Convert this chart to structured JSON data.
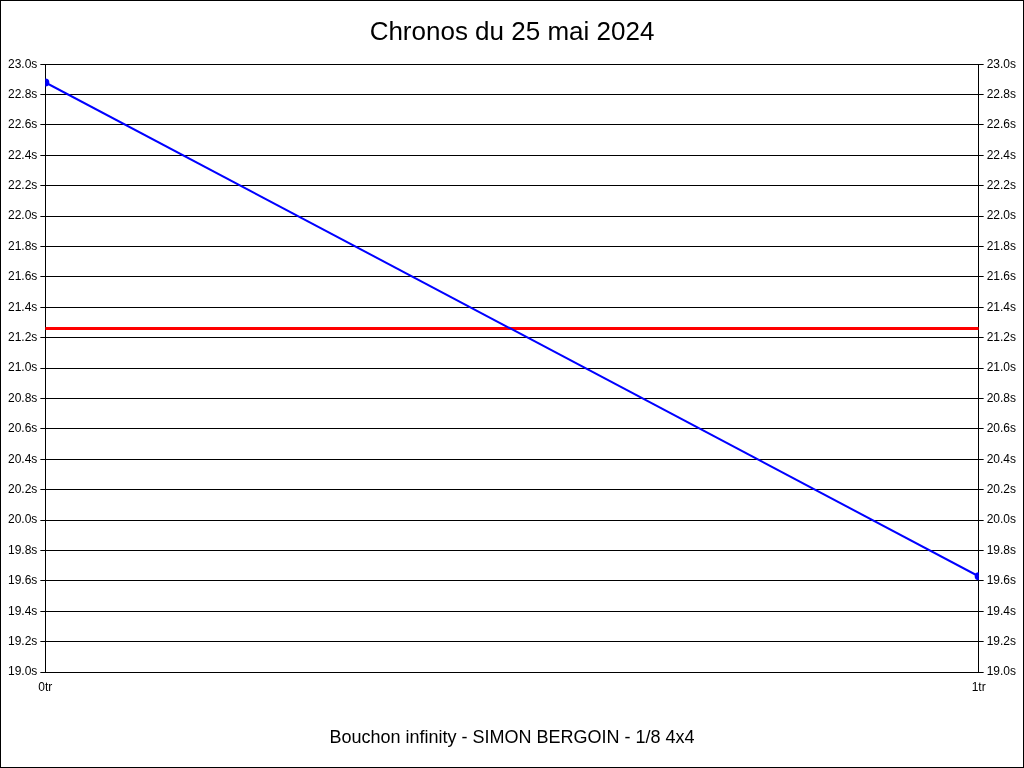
{
  "chart_data": {
    "type": "line",
    "title": "Chronos du 25 mai 2024",
    "xlabel": "Bouchon infinity - SIMON BERGOIN - 1/8 4x4",
    "x": [
      0,
      1
    ],
    "series": [
      {
        "color": "#0000ff",
        "values": [
          22.88,
          19.63
        ]
      }
    ],
    "xlim": [
      0,
      1
    ],
    "xticks": [
      {
        "value": 0,
        "label": "0tr"
      },
      {
        "value": 1,
        "label": "1tr"
      }
    ],
    "ylim": [
      19.0,
      23.0
    ],
    "yticks": [
      {
        "value": 19.0,
        "label": "19.0s"
      },
      {
        "value": 19.2,
        "label": "19.2s"
      },
      {
        "value": 19.4,
        "label": "19.4s"
      },
      {
        "value": 19.6,
        "label": "19.6s"
      },
      {
        "value": 19.8,
        "label": "19.8s"
      },
      {
        "value": 20.0,
        "label": "20.0s"
      },
      {
        "value": 20.2,
        "label": "20.2s"
      },
      {
        "value": 20.4,
        "label": "20.4s"
      },
      {
        "value": 20.6,
        "label": "20.6s"
      },
      {
        "value": 20.8,
        "label": "20.8s"
      },
      {
        "value": 21.0,
        "label": "21.0s"
      },
      {
        "value": 21.2,
        "label": "21.2s"
      },
      {
        "value": 21.4,
        "label": "21.4s"
      },
      {
        "value": 21.6,
        "label": "21.6s"
      },
      {
        "value": 21.8,
        "label": "21.8s"
      },
      {
        "value": 22.0,
        "label": "22.0s"
      },
      {
        "value": 22.2,
        "label": "22.2s"
      },
      {
        "value": 22.4,
        "label": "22.4s"
      },
      {
        "value": 22.6,
        "label": "22.6s"
      },
      {
        "value": 22.8,
        "label": "22.8s"
      },
      {
        "value": 23.0,
        "label": "23.0s"
      }
    ],
    "y2lim": [
      19.0,
      23.0
    ],
    "y2ticks": [
      {
        "value": 19.0,
        "label": "19.0s"
      },
      {
        "value": 19.2,
        "label": "19.2s"
      },
      {
        "value": 19.4,
        "label": "19.4s"
      },
      {
        "value": 19.6,
        "label": "19.6s"
      },
      {
        "value": 19.8,
        "label": "19.8s"
      },
      {
        "value": 20.0,
        "label": "20.0s"
      },
      {
        "value": 20.2,
        "label": "20.2s"
      },
      {
        "value": 20.4,
        "label": "20.4s"
      },
      {
        "value": 20.6,
        "label": "20.6s"
      },
      {
        "value": 20.8,
        "label": "20.8s"
      },
      {
        "value": 21.0,
        "label": "21.0s"
      },
      {
        "value": 21.2,
        "label": "21.2s"
      },
      {
        "value": 21.4,
        "label": "21.4s"
      },
      {
        "value": 21.6,
        "label": "21.6s"
      },
      {
        "value": 21.8,
        "label": "21.8s"
      },
      {
        "value": 22.0,
        "label": "22.0s"
      },
      {
        "value": 22.2,
        "label": "22.2s"
      },
      {
        "value": 22.4,
        "label": "22.4s"
      },
      {
        "value": 22.6,
        "label": "22.6s"
      },
      {
        "value": 22.8,
        "label": "22.8s"
      },
      {
        "value": 23.0,
        "label": "23.0s"
      }
    ],
    "ref_lines": [
      {
        "axis": "y",
        "value": 21.26,
        "color": "#ff0000"
      }
    ],
    "grid": "y",
    "legend": false,
    "marker": "circle",
    "line_style": "solid"
  }
}
